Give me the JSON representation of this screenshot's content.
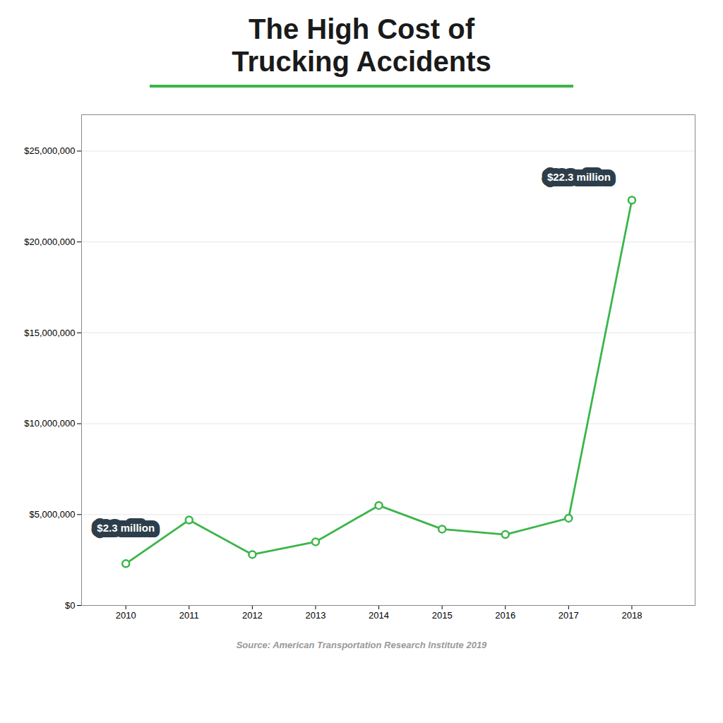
{
  "chart_data": {
    "type": "line",
    "title": "The High Cost of\nTrucking Accidents",
    "source": "Source: American Transportation Research Institute 2019",
    "x": [
      2010,
      2011,
      2012,
      2013,
      2014,
      2015,
      2016,
      2017,
      2018
    ],
    "values": [
      2300000,
      4700000,
      2800000,
      3500000,
      5500000,
      4200000,
      3900000,
      4800000,
      22300000
    ],
    "color": "#3cb54a",
    "marker": "circle",
    "xlim": [
      2009.3,
      2019.0
    ],
    "xticks": [
      2010,
      2011,
      2012,
      2013,
      2014,
      2015,
      2016,
      2017,
      2018
    ],
    "ylim": [
      0,
      27000000
    ],
    "yticks": [
      {
        "value": 0,
        "label": "$0"
      },
      {
        "value": 5000000,
        "label": "$5,000,000"
      },
      {
        "value": 10000000,
        "label": "$10,000,000"
      },
      {
        "value": 15000000,
        "label": "$15,000,000"
      },
      {
        "value": 20000000,
        "label": "$20,000,000"
      },
      {
        "value": 25000000,
        "label": "$25,000,000"
      }
    ],
    "grid": true,
    "annotations": [
      {
        "x": 2010,
        "text": "$2.3 million"
      },
      {
        "x": 2018,
        "text": "$22.3 million"
      }
    ]
  }
}
